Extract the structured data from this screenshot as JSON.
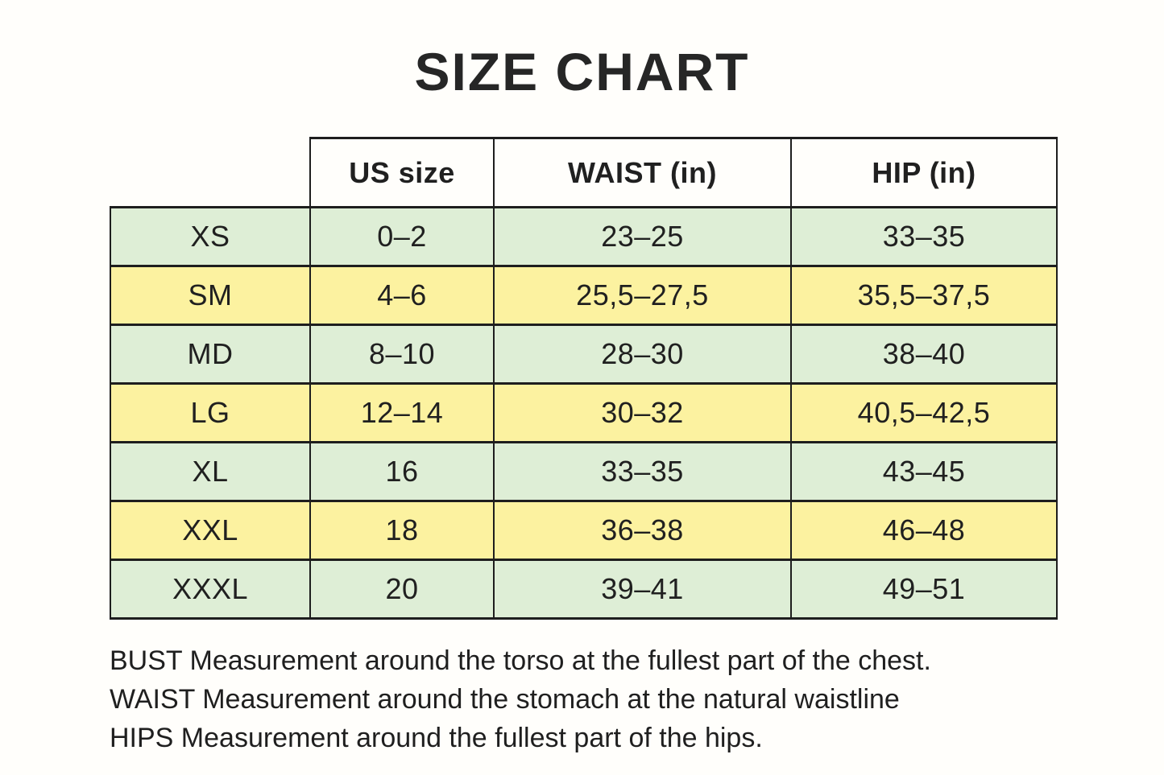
{
  "chart_data": {
    "type": "table",
    "title": "SIZE CHART",
    "columns": [
      "",
      "US size",
      "WAIST (in)",
      "HIP (in)"
    ],
    "rows": [
      [
        "XS",
        "0–2",
        "23–25",
        "33–35"
      ],
      [
        "SM",
        "4–6",
        "25,5–27,5",
        "35,5–37,5"
      ],
      [
        "MD",
        "8–10",
        "28–30",
        "38–40"
      ],
      [
        "LG",
        "12–14",
        "30–32",
        "40,5–42,5"
      ],
      [
        "XL",
        "16",
        "33–35",
        "43–45"
      ],
      [
        "XXL",
        "18",
        "36–38",
        "46–48"
      ],
      [
        "XXXL",
        "20",
        "39–41",
        "49–51"
      ]
    ],
    "row_tones": [
      "green",
      "yellow",
      "green",
      "yellow",
      "green",
      "yellow",
      "green"
    ],
    "notes": [
      "BUST Measurement around the torso at the fullest part of the chest.",
      "WAIST Measurement around the stomach at the natural waistline",
      "HIPS Measurement around the fullest part of the hips."
    ]
  },
  "colors": {
    "background": "#fffefb",
    "row_green": "#deeed6",
    "row_yellow": "#fcf2a0",
    "border": "#1e1e1e",
    "text": "#202020"
  }
}
